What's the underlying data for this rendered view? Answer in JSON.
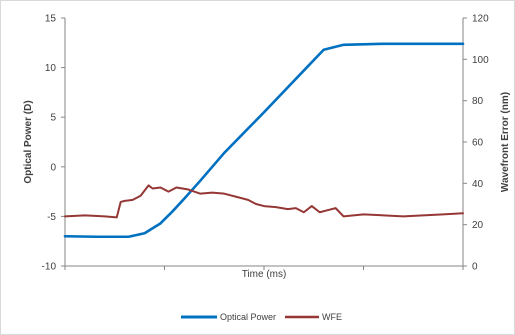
{
  "chart_data": {
    "type": "line",
    "title": "",
    "xlabel": "Time (ms)",
    "ylabel_left": "Optical Power (D)",
    "ylabel_right": "Wavefront Error (nm)",
    "ylim_left": [
      -10,
      15
    ],
    "ylim_right": [
      0,
      120
    ],
    "yticks_left": [
      -10,
      -5,
      0,
      5,
      10,
      15
    ],
    "yticks_right": [
      0,
      20,
      40,
      60,
      80,
      100,
      120
    ],
    "xlim": [
      0,
      1
    ],
    "grid": false,
    "legend_position": "bottom",
    "series": [
      {
        "name": "Optical Power",
        "axis": "left",
        "color": "#0070c0",
        "x": [
          0,
          0.08,
          0.16,
          0.2,
          0.24,
          0.27,
          0.3,
          0.34,
          0.4,
          0.5,
          0.6,
          0.65,
          0.68,
          0.7,
          0.8,
          0.9,
          1.0
        ],
        "y": [
          -7.0,
          -7.05,
          -7.05,
          -6.7,
          -5.7,
          -4.5,
          -3.2,
          -1.4,
          1.4,
          5.5,
          9.7,
          11.8,
          12.1,
          12.3,
          12.4,
          12.4,
          12.4
        ]
      },
      {
        "name": "WFE",
        "axis": "right",
        "color": "#953735",
        "x": [
          0,
          0.05,
          0.1,
          0.13,
          0.14,
          0.15,
          0.17,
          0.19,
          0.21,
          0.22,
          0.24,
          0.26,
          0.28,
          0.31,
          0.34,
          0.37,
          0.4,
          0.43,
          0.46,
          0.48,
          0.5,
          0.53,
          0.56,
          0.58,
          0.6,
          0.62,
          0.64,
          0.66,
          0.68,
          0.7,
          0.75,
          0.8,
          0.85,
          0.9,
          0.95,
          1.0
        ],
        "y": [
          24,
          24.5,
          24,
          23.5,
          31,
          31.5,
          32,
          34,
          39,
          37.5,
          38,
          36,
          38,
          37,
          35,
          35.5,
          35,
          33.5,
          32,
          30,
          29,
          28.5,
          27.5,
          28,
          26,
          29,
          26,
          27,
          28,
          24,
          25,
          24.5,
          24,
          24.5,
          25,
          25.5
        ]
      }
    ]
  }
}
